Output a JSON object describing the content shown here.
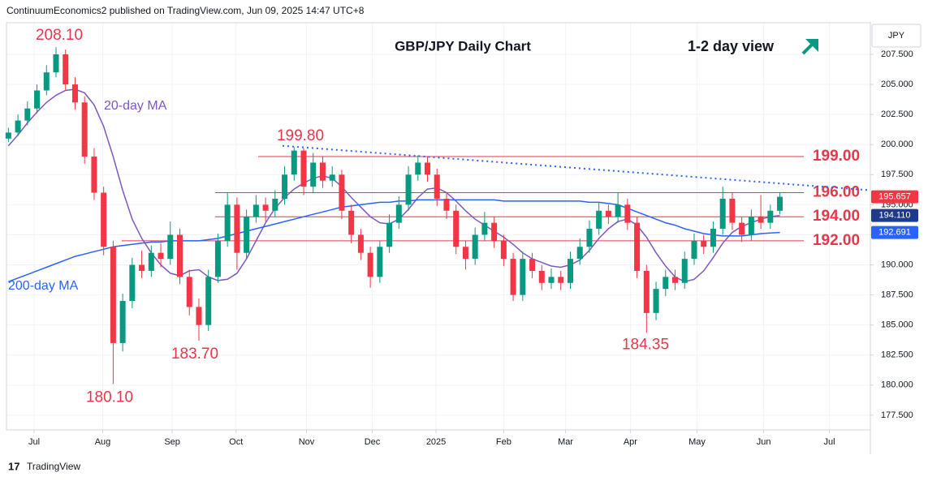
{
  "header": "ContinuumEconomics2 published on TradingView.com, Jun 09, 2025 14:47 UTC+8",
  "footer": "TradingView",
  "chart_data": {
    "type": "candlestick",
    "title": "GBP/JPY Daily Chart",
    "subtitle": "1-2 day view",
    "y_axis_label": "JPY",
    "up_color": "#089981",
    "down_color": "#f23645",
    "ohlc": [
      [
        200.5,
        201.4,
        200.2,
        201.0
      ],
      [
        201.0,
        202.5,
        200.7,
        202.0
      ],
      [
        202.0,
        203.6,
        201.6,
        203.0
      ],
      [
        203.0,
        205.0,
        202.6,
        204.5
      ],
      [
        204.5,
        206.6,
        204.1,
        206.0
      ],
      [
        206.0,
        208.1,
        205.6,
        207.5
      ],
      [
        207.5,
        207.9,
        204.5,
        205.0
      ],
      [
        205.0,
        205.6,
        202.9,
        203.5
      ],
      [
        203.5,
        204.0,
        198.4,
        199.0
      ],
      [
        199.0,
        199.7,
        195.4,
        196.0
      ],
      [
        196.0,
        196.5,
        190.8,
        191.5
      ],
      [
        191.5,
        192.0,
        180.1,
        183.5
      ],
      [
        183.5,
        187.6,
        182.8,
        187.0
      ],
      [
        187.0,
        190.6,
        186.4,
        190.0
      ],
      [
        190.0,
        191.2,
        188.9,
        189.5
      ],
      [
        189.5,
        191.6,
        189.0,
        191.0
      ],
      [
        191.0,
        191.8,
        189.8,
        190.5
      ],
      [
        190.5,
        193.6,
        190.0,
        192.5
      ],
      [
        192.5,
        193.0,
        188.4,
        189.0
      ],
      [
        189.0,
        189.6,
        185.8,
        186.5
      ],
      [
        186.5,
        187.2,
        183.7,
        185.0
      ],
      [
        185.0,
        189.6,
        184.5,
        189.0
      ],
      [
        189.0,
        192.6,
        188.5,
        192.0
      ],
      [
        192.0,
        196.0,
        191.5,
        195.0
      ],
      [
        195.0,
        195.6,
        189.6,
        191.0
      ],
      [
        191.0,
        194.6,
        190.5,
        194.0
      ],
      [
        194.0,
        195.8,
        193.5,
        195.0
      ],
      [
        195.0,
        195.6,
        193.6,
        194.5
      ],
      [
        194.5,
        196.2,
        194.0,
        195.5
      ],
      [
        195.5,
        198.2,
        195.0,
        197.5
      ],
      [
        197.5,
        199.8,
        197.0,
        199.5
      ],
      [
        199.5,
        199.7,
        195.8,
        196.5
      ],
      [
        196.5,
        199.3,
        196.0,
        198.5
      ],
      [
        198.5,
        199.0,
        196.4,
        197.0
      ],
      [
        197.0,
        198.2,
        196.5,
        197.5
      ],
      [
        197.5,
        197.9,
        193.8,
        194.5
      ],
      [
        194.5,
        195.0,
        191.8,
        192.5
      ],
      [
        192.5,
        193.0,
        190.4,
        191.0
      ],
      [
        191.0,
        191.5,
        188.1,
        189.0
      ],
      [
        189.0,
        192.0,
        188.5,
        191.5
      ],
      [
        191.5,
        194.2,
        191.0,
        193.5
      ],
      [
        193.5,
        195.7,
        193.0,
        195.0
      ],
      [
        195.0,
        198.2,
        194.5,
        197.5
      ],
      [
        197.5,
        199.1,
        197.0,
        198.5
      ],
      [
        198.5,
        199.0,
        196.9,
        197.5
      ],
      [
        197.5,
        198.0,
        194.9,
        195.5
      ],
      [
        195.5,
        196.0,
        193.8,
        194.5
      ],
      [
        194.5,
        195.0,
        190.9,
        191.5
      ],
      [
        191.5,
        192.0,
        189.6,
        190.5
      ],
      [
        190.5,
        193.1,
        190.0,
        192.5
      ],
      [
        192.5,
        194.4,
        192.0,
        193.5
      ],
      [
        193.5,
        194.0,
        191.4,
        192.0
      ],
      [
        192.0,
        192.5,
        189.9,
        190.5
      ],
      [
        190.5,
        191.0,
        187.0,
        187.5
      ],
      [
        187.5,
        191.1,
        187.0,
        190.5
      ],
      [
        190.5,
        191.0,
        188.9,
        189.5
      ],
      [
        189.5,
        190.0,
        187.9,
        188.5
      ],
      [
        188.5,
        189.7,
        188.0,
        189.0
      ],
      [
        189.0,
        189.5,
        187.9,
        188.5
      ],
      [
        188.5,
        191.1,
        188.0,
        190.5
      ],
      [
        190.5,
        192.2,
        190.0,
        191.5
      ],
      [
        191.5,
        193.7,
        191.0,
        193.0
      ],
      [
        193.0,
        195.2,
        192.5,
        194.5
      ],
      [
        194.5,
        195.0,
        193.4,
        194.0
      ],
      [
        194.0,
        196.0,
        193.5,
        195.0
      ],
      [
        195.0,
        195.5,
        192.9,
        193.5
      ],
      [
        193.5,
        194.0,
        188.9,
        189.5
      ],
      [
        189.5,
        190.0,
        184.35,
        186.0
      ],
      [
        186.0,
        188.6,
        185.4,
        188.0
      ],
      [
        188.0,
        189.6,
        187.4,
        189.0
      ],
      [
        189.0,
        189.6,
        187.9,
        188.5
      ],
      [
        188.5,
        191.1,
        188.0,
        190.5
      ],
      [
        190.5,
        192.6,
        190.0,
        192.0
      ],
      [
        192.0,
        192.5,
        190.9,
        191.5
      ],
      [
        191.5,
        193.6,
        191.0,
        193.0
      ],
      [
        193.0,
        196.5,
        192.5,
        195.5
      ],
      [
        195.5,
        196.0,
        192.9,
        193.5
      ],
      [
        193.5,
        194.0,
        191.9,
        192.5
      ],
      [
        192.5,
        194.6,
        192.0,
        194.0
      ],
      [
        194.0,
        195.8,
        193.0,
        193.5
      ],
      [
        193.5,
        195.0,
        193.0,
        194.5
      ],
      [
        194.5,
        196.0,
        194.2,
        195.657
      ]
    ],
    "series": [
      {
        "name": "20-day MA",
        "color": "#7e57c2",
        "values": [
          199.9,
          200.8,
          201.8,
          202.7,
          203.5,
          204.1,
          204.5,
          204.6,
          204.3,
          203.3,
          201.5,
          199.0,
          196.2,
          193.8,
          192.2,
          191.0,
          190.0,
          189.3,
          189.1,
          189.5,
          189.6,
          189.0,
          188.7,
          188.8,
          189.3,
          190.5,
          192.0,
          193.5,
          194.7,
          195.6,
          196.3,
          196.8,
          197.2,
          197.4,
          197.2,
          196.5,
          195.6,
          194.8,
          194.0,
          193.5,
          193.4,
          193.8,
          194.6,
          195.6,
          196.3,
          196.4,
          196.0,
          195.3,
          194.5,
          193.8,
          193.3,
          192.8,
          192.3,
          191.7,
          191.0,
          190.5,
          190.2,
          189.9,
          189.8,
          190.0,
          190.4,
          191.2,
          192.2,
          193.0,
          193.6,
          193.8,
          193.3,
          192.3,
          191.0,
          189.9,
          189.0,
          188.6,
          188.8,
          189.5,
          190.6,
          191.8,
          192.7,
          193.2,
          193.5,
          193.8,
          194.0,
          194.11
        ]
      },
      {
        "name": "200-day MA",
        "color": "#2962ff",
        "values": [
          188.6,
          188.9,
          189.2,
          189.5,
          189.8,
          190.1,
          190.4,
          190.7,
          190.9,
          191.1,
          191.3,
          191.5,
          191.6,
          191.7,
          191.8,
          191.9,
          191.9,
          192.0,
          192.0,
          192.0,
          192.0,
          192.1,
          192.2,
          192.4,
          192.6,
          192.8,
          193.0,
          193.2,
          193.4,
          193.6,
          193.8,
          194.0,
          194.2,
          194.4,
          194.6,
          194.8,
          194.9,
          195.0,
          195.1,
          195.2,
          195.2,
          195.3,
          195.3,
          195.4,
          195.4,
          195.4,
          195.4,
          195.4,
          195.4,
          195.4,
          195.4,
          195.4,
          195.3,
          195.3,
          195.3,
          195.3,
          195.3,
          195.3,
          195.3,
          195.3,
          195.3,
          195.2,
          195.2,
          195.1,
          195.0,
          194.7,
          194.4,
          194.1,
          193.8,
          193.5,
          193.3,
          193.0,
          192.8,
          192.6,
          192.5,
          192.4,
          192.4,
          192.4,
          192.5,
          192.6,
          192.65,
          192.691
        ]
      }
    ],
    "levels": [
      {
        "value": 199,
        "label": "199.00"
      },
      {
        "value": 196,
        "label": "196.00"
      },
      {
        "value": 194,
        "label": "194.00"
      },
      {
        "value": 192,
        "label": "192.00"
      }
    ],
    "level_color": "#e8364a",
    "annotations": [
      {
        "value": 208.1,
        "label": "208.10"
      },
      {
        "value": 199.8,
        "label": "199.80"
      },
      {
        "value": 180.1,
        "label": "180.10"
      },
      {
        "value": 183.7,
        "label": "183.70"
      },
      {
        "value": 184.35,
        "label": "184.35"
      }
    ],
    "trendline": {
      "values": [
        199.9,
        196.2
      ],
      "color": "#2962ff"
    },
    "price_badges": [
      {
        "value": 195.657,
        "label": "195.657",
        "color": "#f23645"
      },
      {
        "value": 194.11,
        "label": "194.110",
        "color": "#1e3a8a"
      },
      {
        "value": 192.691,
        "label": "192.691",
        "color": "#2962ff"
      }
    ],
    "xlim": [
      -0.2,
      90.5
    ],
    "ylim": [
      176.28,
      210.13
    ],
    "xticks": [
      {
        "value": 2.7,
        "label": "Jul"
      },
      {
        "value": 9.9,
        "label": "Aug"
      },
      {
        "value": 17.2,
        "label": "Sep"
      },
      {
        "value": 23.9,
        "label": "Oct"
      },
      {
        "value": 31.3,
        "label": "Nov"
      },
      {
        "value": 38.2,
        "label": "Dec"
      },
      {
        "value": 44.9,
        "label": "2025"
      },
      {
        "value": 52.0,
        "label": "Feb"
      },
      {
        "value": 58.5,
        "label": "Mar"
      },
      {
        "value": 65.3,
        "label": "Apr"
      },
      {
        "value": 72.3,
        "label": "May"
      },
      {
        "value": 79.3,
        "label": "Jun"
      },
      {
        "value": 86.2,
        "label": "Jul"
      }
    ],
    "yticks": [
      {
        "value": 177.5,
        "label": "177.500"
      },
      {
        "value": 180,
        "label": "180.000"
      },
      {
        "value": 182.5,
        "label": "182.500"
      },
      {
        "value": 185,
        "label": "185.000"
      },
      {
        "value": 187.5,
        "label": "187.500"
      },
      {
        "value": 190,
        "label": "190.000"
      },
      {
        "value": 192.5,
        "label": "192.500"
      },
      {
        "value": 195,
        "label": "195.000"
      },
      {
        "value": 197.5,
        "label": "197.500"
      },
      {
        "value": 200,
        "label": "200.000"
      },
      {
        "value": 202.5,
        "label": "202.500"
      },
      {
        "value": 205,
        "label": "205.000"
      },
      {
        "value": 207.5,
        "label": "207.500"
      }
    ],
    "grid": true
  }
}
